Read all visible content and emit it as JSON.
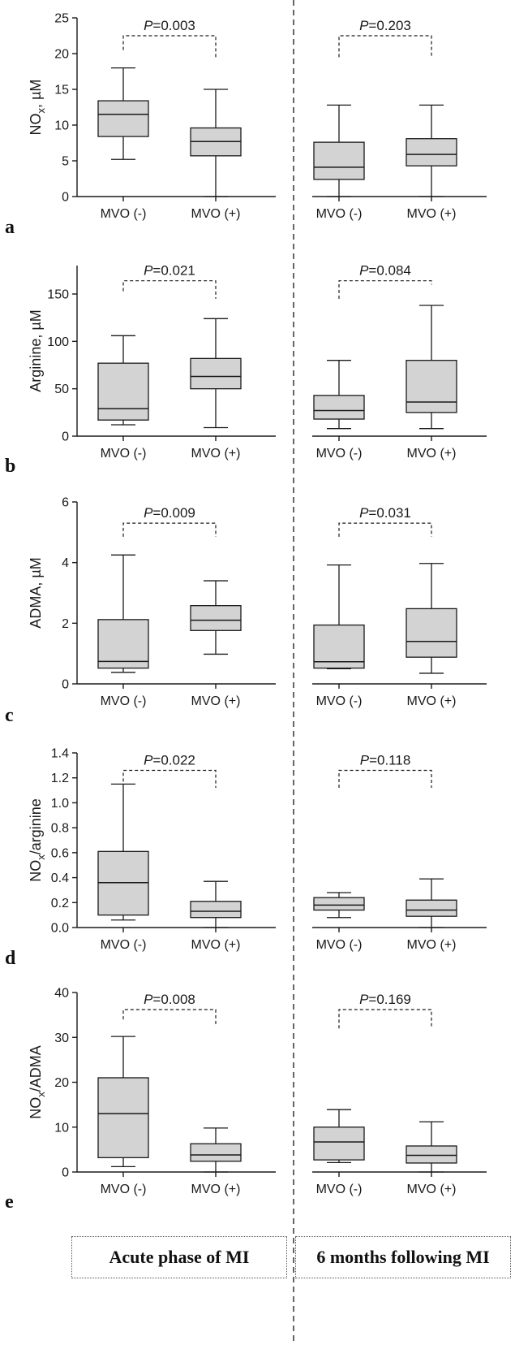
{
  "chart_data": [
    {
      "type": "box",
      "panel": "a",
      "ylabel_main": "NO",
      "ylabel_sub": "x",
      "ylabel_rest": ", µM",
      "ylim": [
        0,
        25
      ],
      "yticks": [
        "0",
        "5",
        "10",
        "15",
        "20",
        "25"
      ],
      "ytick_values": [
        0,
        5,
        10,
        15,
        20,
        25
      ],
      "categories": [
        "MVO (-)",
        "MVO (+)",
        "MVO (-)",
        "MVO (+)"
      ],
      "boxes": [
        {
          "min": 5.2,
          "q1": 8.4,
          "median": 11.5,
          "q3": 13.4,
          "max": 18.0
        },
        {
          "min": 0.0,
          "q1": 5.7,
          "median": 7.7,
          "q3": 9.6,
          "max": 15.0
        },
        {
          "min": 0.0,
          "q1": 2.4,
          "median": 4.1,
          "q3": 7.6,
          "max": 12.8
        },
        {
          "min": 0.0,
          "q1": 4.3,
          "median": 5.9,
          "q3": 8.1,
          "max": 12.8
        }
      ],
      "pvalues": [
        {
          "italic": "P",
          "text": "=0.003",
          "y": 22.5,
          "tips": [
            20.5,
            19.5
          ]
        },
        {
          "italic": "P",
          "text": "=0.203",
          "y": 22.5,
          "tips": [
            19.5,
            19.5
          ]
        }
      ]
    },
    {
      "type": "box",
      "panel": "b",
      "ylabel_main": "Arginine, µM",
      "ylabel_sub": "",
      "ylabel_rest": "",
      "ylim": [
        0,
        180
      ],
      "yticks": [
        "0",
        "50",
        "100",
        "150"
      ],
      "ytick_values": [
        0,
        50,
        100,
        150
      ],
      "categories": [
        "MVO (-)",
        "MVO (+)",
        "MVO (-)",
        "MVO (+)"
      ],
      "boxes": [
        {
          "min": 12,
          "q1": 17,
          "median": 29,
          "q3": 77,
          "max": 106
        },
        {
          "min": 9,
          "q1": 50,
          "median": 63,
          "q3": 82,
          "max": 124
        },
        {
          "min": 8,
          "q1": 18,
          "median": 27,
          "q3": 43,
          "max": 80
        },
        {
          "min": 8,
          "q1": 25,
          "median": 36,
          "q3": 80,
          "max": 138
        }
      ],
      "pvalues": [
        {
          "italic": "P",
          "text": "=0.021",
          "y": 164,
          "tips": [
            153,
            145
          ]
        },
        {
          "italic": "P",
          "text": "=0.084",
          "y": 164,
          "tips": [
            145,
            160
          ]
        }
      ]
    },
    {
      "type": "box",
      "panel": "c",
      "ylabel_main": "ADMA, µM",
      "ylabel_sub": "",
      "ylabel_rest": "",
      "ylim": [
        0,
        6
      ],
      "yticks": [
        "0",
        "2",
        "4",
        "6"
      ],
      "ytick_values": [
        0,
        2,
        4,
        6
      ],
      "categories": [
        "MVO (-)",
        "MVO (+)",
        "MVO (-)",
        "MVO (+)"
      ],
      "boxes": [
        {
          "min": 0.38,
          "q1": 0.52,
          "median": 0.74,
          "q3": 2.12,
          "max": 4.25
        },
        {
          "min": 0.98,
          "q1": 1.76,
          "median": 2.1,
          "q3": 2.58,
          "max": 3.4
        },
        {
          "min": 0.5,
          "q1": 0.52,
          "median": 0.73,
          "q3": 1.94,
          "max": 3.92
        },
        {
          "min": 0.35,
          "q1": 0.88,
          "median": 1.4,
          "q3": 2.48,
          "max": 3.97
        }
      ],
      "pvalues": [
        {
          "italic": "P",
          "text": "=0.009",
          "y": 5.3,
          "tips": [
            4.85,
            4.85
          ]
        },
        {
          "italic": "P",
          "text": "=0.031",
          "y": 5.3,
          "tips": [
            4.85,
            4.85
          ]
        }
      ]
    },
    {
      "type": "box",
      "panel": "d",
      "ylabel_main": "NO",
      "ylabel_sub": "x",
      "ylabel_rest": "/arginine",
      "ylim": [
        0,
        1.4
      ],
      "yticks": [
        "0.0",
        "0.2",
        "0.4",
        "0.6",
        "0.8",
        "1.0",
        "1.2",
        "1.4"
      ],
      "ytick_values": [
        0,
        0.2,
        0.4,
        0.6,
        0.8,
        1.0,
        1.2,
        1.4
      ],
      "categories": [
        "MVO (-)",
        "MVO (+)",
        "MVO (-)",
        "MVO (+)"
      ],
      "boxes": [
        {
          "min": 0.06,
          "q1": 0.1,
          "median": 0.36,
          "q3": 0.61,
          "max": 1.15
        },
        {
          "min": 0.0,
          "q1": 0.08,
          "median": 0.13,
          "q3": 0.21,
          "max": 0.37
        },
        {
          "min": 0.08,
          "q1": 0.14,
          "median": 0.18,
          "q3": 0.24,
          "max": 0.28
        },
        {
          "min": 0.0,
          "q1": 0.09,
          "median": 0.14,
          "q3": 0.22,
          "max": 0.39
        }
      ],
      "pvalues": [
        {
          "italic": "P",
          "text": "=0.022",
          "y": 1.26,
          "tips": [
            1.17,
            1.12
          ]
        },
        {
          "italic": "P",
          "text": "=0.118",
          "y": 1.26,
          "tips": [
            1.12,
            1.12
          ]
        }
      ]
    },
    {
      "type": "box",
      "panel": "e",
      "ylabel_main": "NO",
      "ylabel_sub": "x",
      "ylabel_rest": "/ADMA",
      "ylim": [
        0,
        40
      ],
      "yticks": [
        "0",
        "10",
        "20",
        "30",
        "40"
      ],
      "ytick_values": [
        0,
        10,
        20,
        30,
        40
      ],
      "categories": [
        "MVO (-)",
        "MVO (+)",
        "MVO (-)",
        "MVO (+)"
      ],
      "boxes": [
        {
          "min": 1.2,
          "q1": 3.2,
          "median": 13.0,
          "q3": 21.0,
          "max": 30.2
        },
        {
          "min": 0.0,
          "q1": 2.4,
          "median": 3.8,
          "q3": 6.3,
          "max": 9.8
        },
        {
          "min": 2.1,
          "q1": 2.7,
          "median": 6.7,
          "q3": 10.0,
          "max": 13.9
        },
        {
          "min": 0.0,
          "q1": 2.0,
          "median": 3.7,
          "q3": 5.8,
          "max": 11.2
        }
      ],
      "pvalues": [
        {
          "italic": "P",
          "text": "=0.008",
          "y": 36.2,
          "tips": [
            34,
            32.5
          ]
        },
        {
          "italic": "P",
          "text": "=0.169",
          "y": 36.2,
          "tips": [
            32,
            32.5
          ]
        }
      ]
    }
  ],
  "footer": {
    "left_label": "Acute phase of MI",
    "right_label": "6 months following MI"
  },
  "colors": {
    "box_fill": "#d3d3d3",
    "line": "#1a1a1a",
    "divider": "#333333"
  }
}
